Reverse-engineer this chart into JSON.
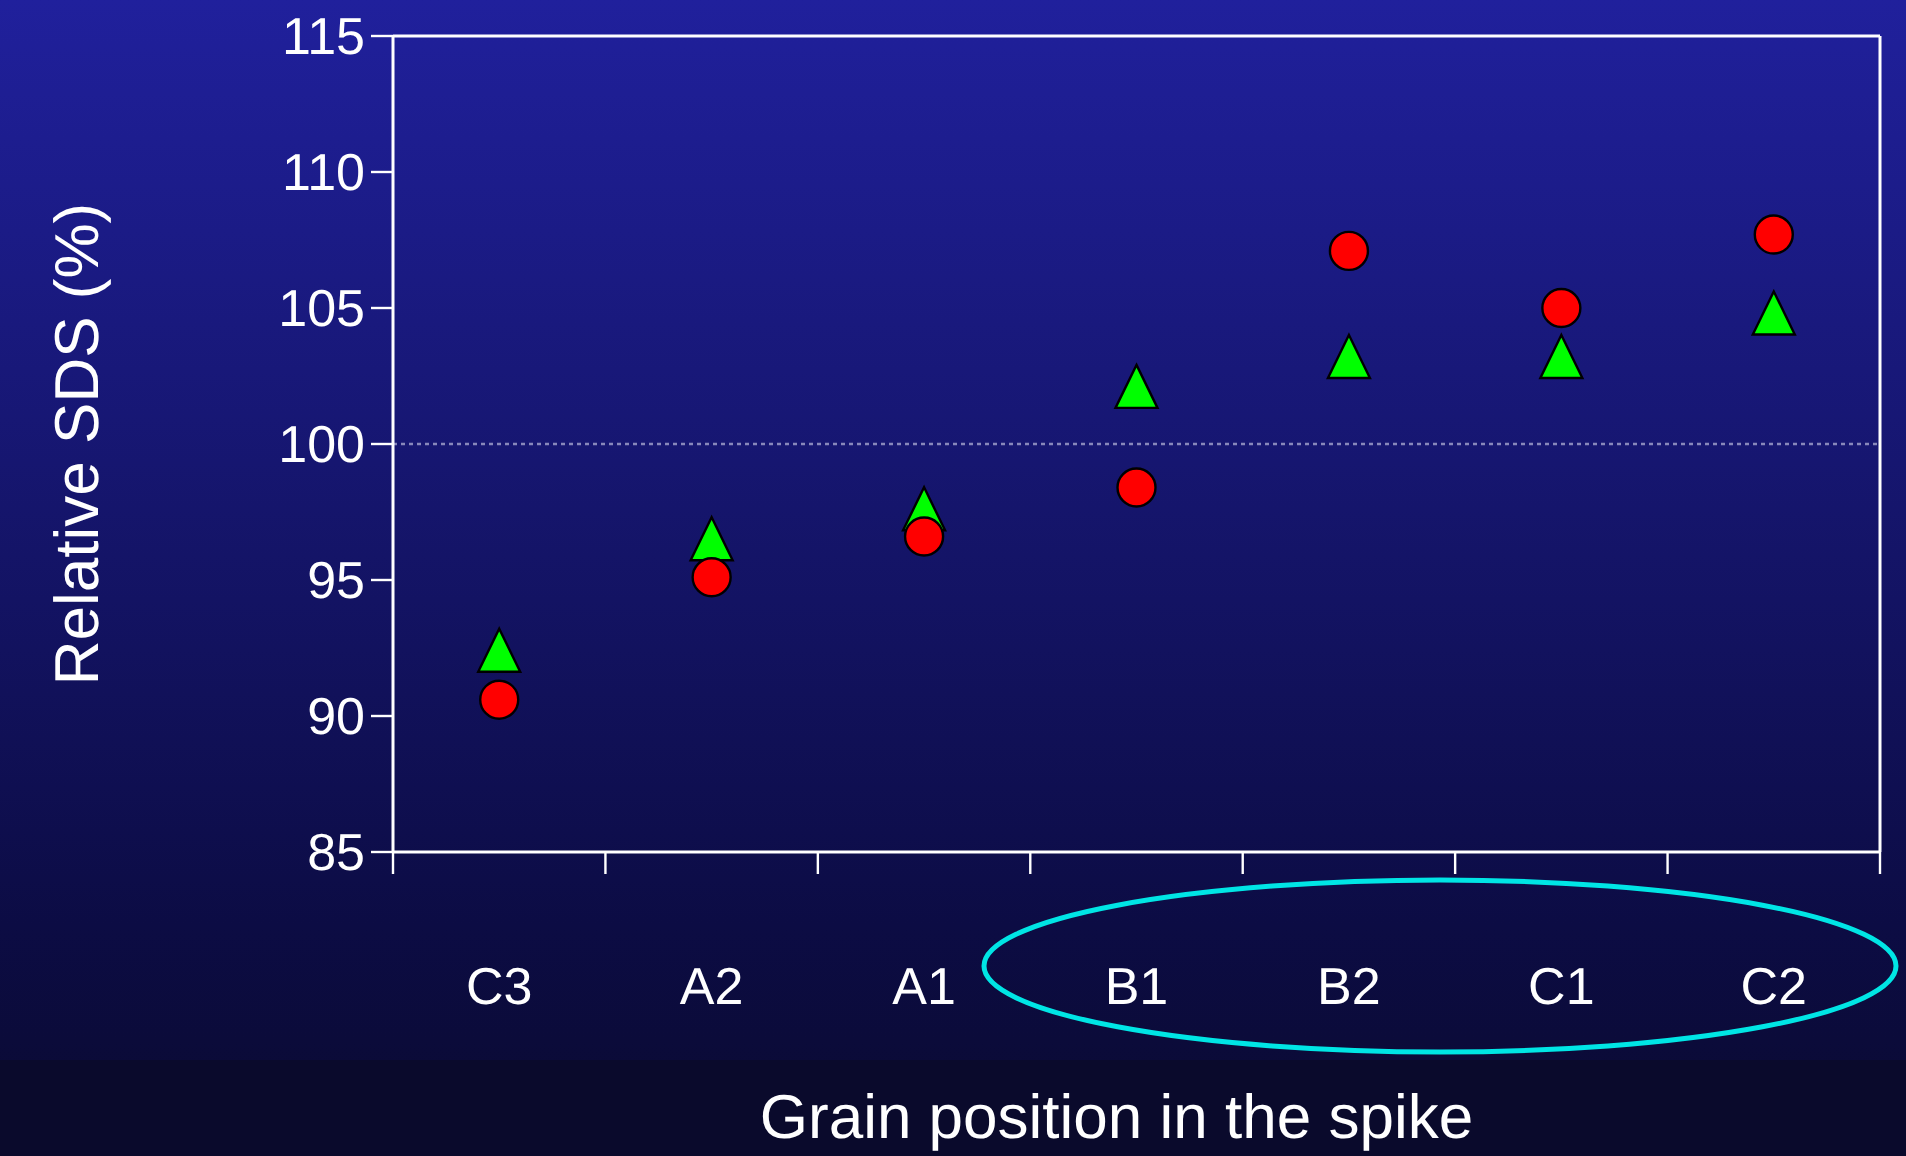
{
  "chart_data": {
    "type": "scatter",
    "xlabel": "Grain position in the spike",
    "ylabel": "Relative SDS (%)",
    "categories": [
      "C3",
      "A2",
      "A1",
      "B1",
      "B2",
      "C1",
      "C2"
    ],
    "series": [
      {
        "color": "#00ff00",
        "marker": "triangle",
        "values": [
          92.4,
          96.5,
          97.6,
          102.1,
          103.2,
          103.2,
          104.8
        ]
      },
      {
        "color": "#ff0000",
        "marker": "circle",
        "values": [
          90.6,
          95.1,
          96.6,
          98.4,
          107.1,
          105.0,
          107.7
        ]
      }
    ],
    "ylim": [
      85,
      115
    ],
    "yticks": [
      85,
      90,
      95,
      100,
      105,
      110,
      115
    ],
    "grid": false,
    "ref_lines": [
      {
        "axis": "y",
        "value": 100,
        "color": "#8888bb",
        "line_style": "dotted"
      }
    ]
  }
}
